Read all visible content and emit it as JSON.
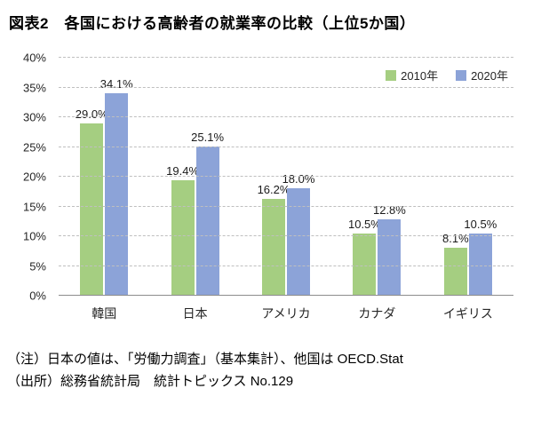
{
  "title": "図表2　各国における高齢者の就業率の比較（上位5か国）",
  "chart_data": {
    "type": "bar",
    "title": "図表2　各国における高齢者の就業率の比較（上位5か国）",
    "categories": [
      "韓国",
      "日本",
      "アメリカ",
      "カナダ",
      "イギリス"
    ],
    "series": [
      {
        "name": "2010年",
        "color": "#A5CE81",
        "values": [
          29.0,
          19.4,
          16.2,
          10.5,
          8.1
        ]
      },
      {
        "name": "2020年",
        "color": "#8CA3D8",
        "values": [
          34.1,
          25.1,
          18.0,
          12.8,
          10.5
        ]
      }
    ],
    "xlabel": "",
    "ylabel": "",
    "ylim": [
      0,
      40
    ],
    "ytick_step": 5,
    "ytick_labels": [
      "0%",
      "5%",
      "10%",
      "15%",
      "20%",
      "25%",
      "30%",
      "35%",
      "40%"
    ],
    "value_label_suffix": "%",
    "grid": "dashed-horizontal",
    "legend_position": "top-right"
  },
  "notes": {
    "note1": "（注）日本の値は、「労働力調査」（基本集計）、他国は OECD.Stat",
    "note2": "（出所）総務省統計局　統計トピックス No.129"
  }
}
